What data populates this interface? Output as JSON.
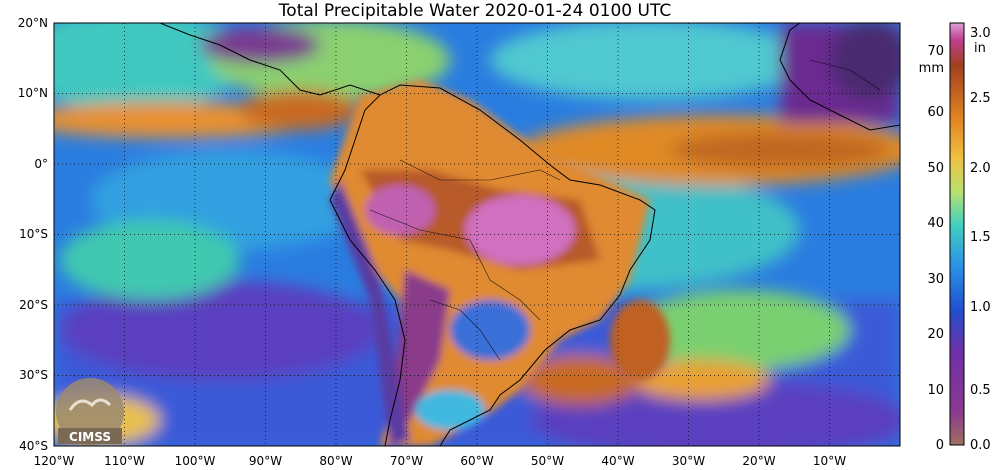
{
  "title": "Total Precipitable Water  2020-01-24 0100 UTC",
  "map": {
    "lat_labels": [
      "20°N",
      "10°N",
      "0°",
      "10°S",
      "20°S",
      "30°S",
      "40°S"
    ],
    "lon_labels": [
      "120°W",
      "110°W",
      "100°W",
      "90°W",
      "80°W",
      "70°W",
      "60°W",
      "50°W",
      "40°W",
      "30°W",
      "20°W",
      "10°W"
    ],
    "lat_range": [
      -40,
      20
    ],
    "lon_range": [
      -120,
      0
    ]
  },
  "colorbar": {
    "mm_ticks": [
      "0",
      "10",
      "20",
      "30",
      "40",
      "50",
      "60",
      "70"
    ],
    "mm_unit": "mm",
    "in_ticks": [
      "0.0",
      "0.5",
      "1.0",
      "1.5",
      "2.0",
      "2.5",
      "3.0"
    ],
    "in_unit": "in",
    "range_mm": [
      0,
      76
    ]
  },
  "logo": {
    "text": "CIMSS"
  },
  "colors": {
    "ocean_low": "#1e64d8",
    "mid": "#3ad0c8",
    "moist": "#e8a030",
    "high": "#c06820",
    "very_high": "#d878c8",
    "dry": "#7a2a90"
  }
}
